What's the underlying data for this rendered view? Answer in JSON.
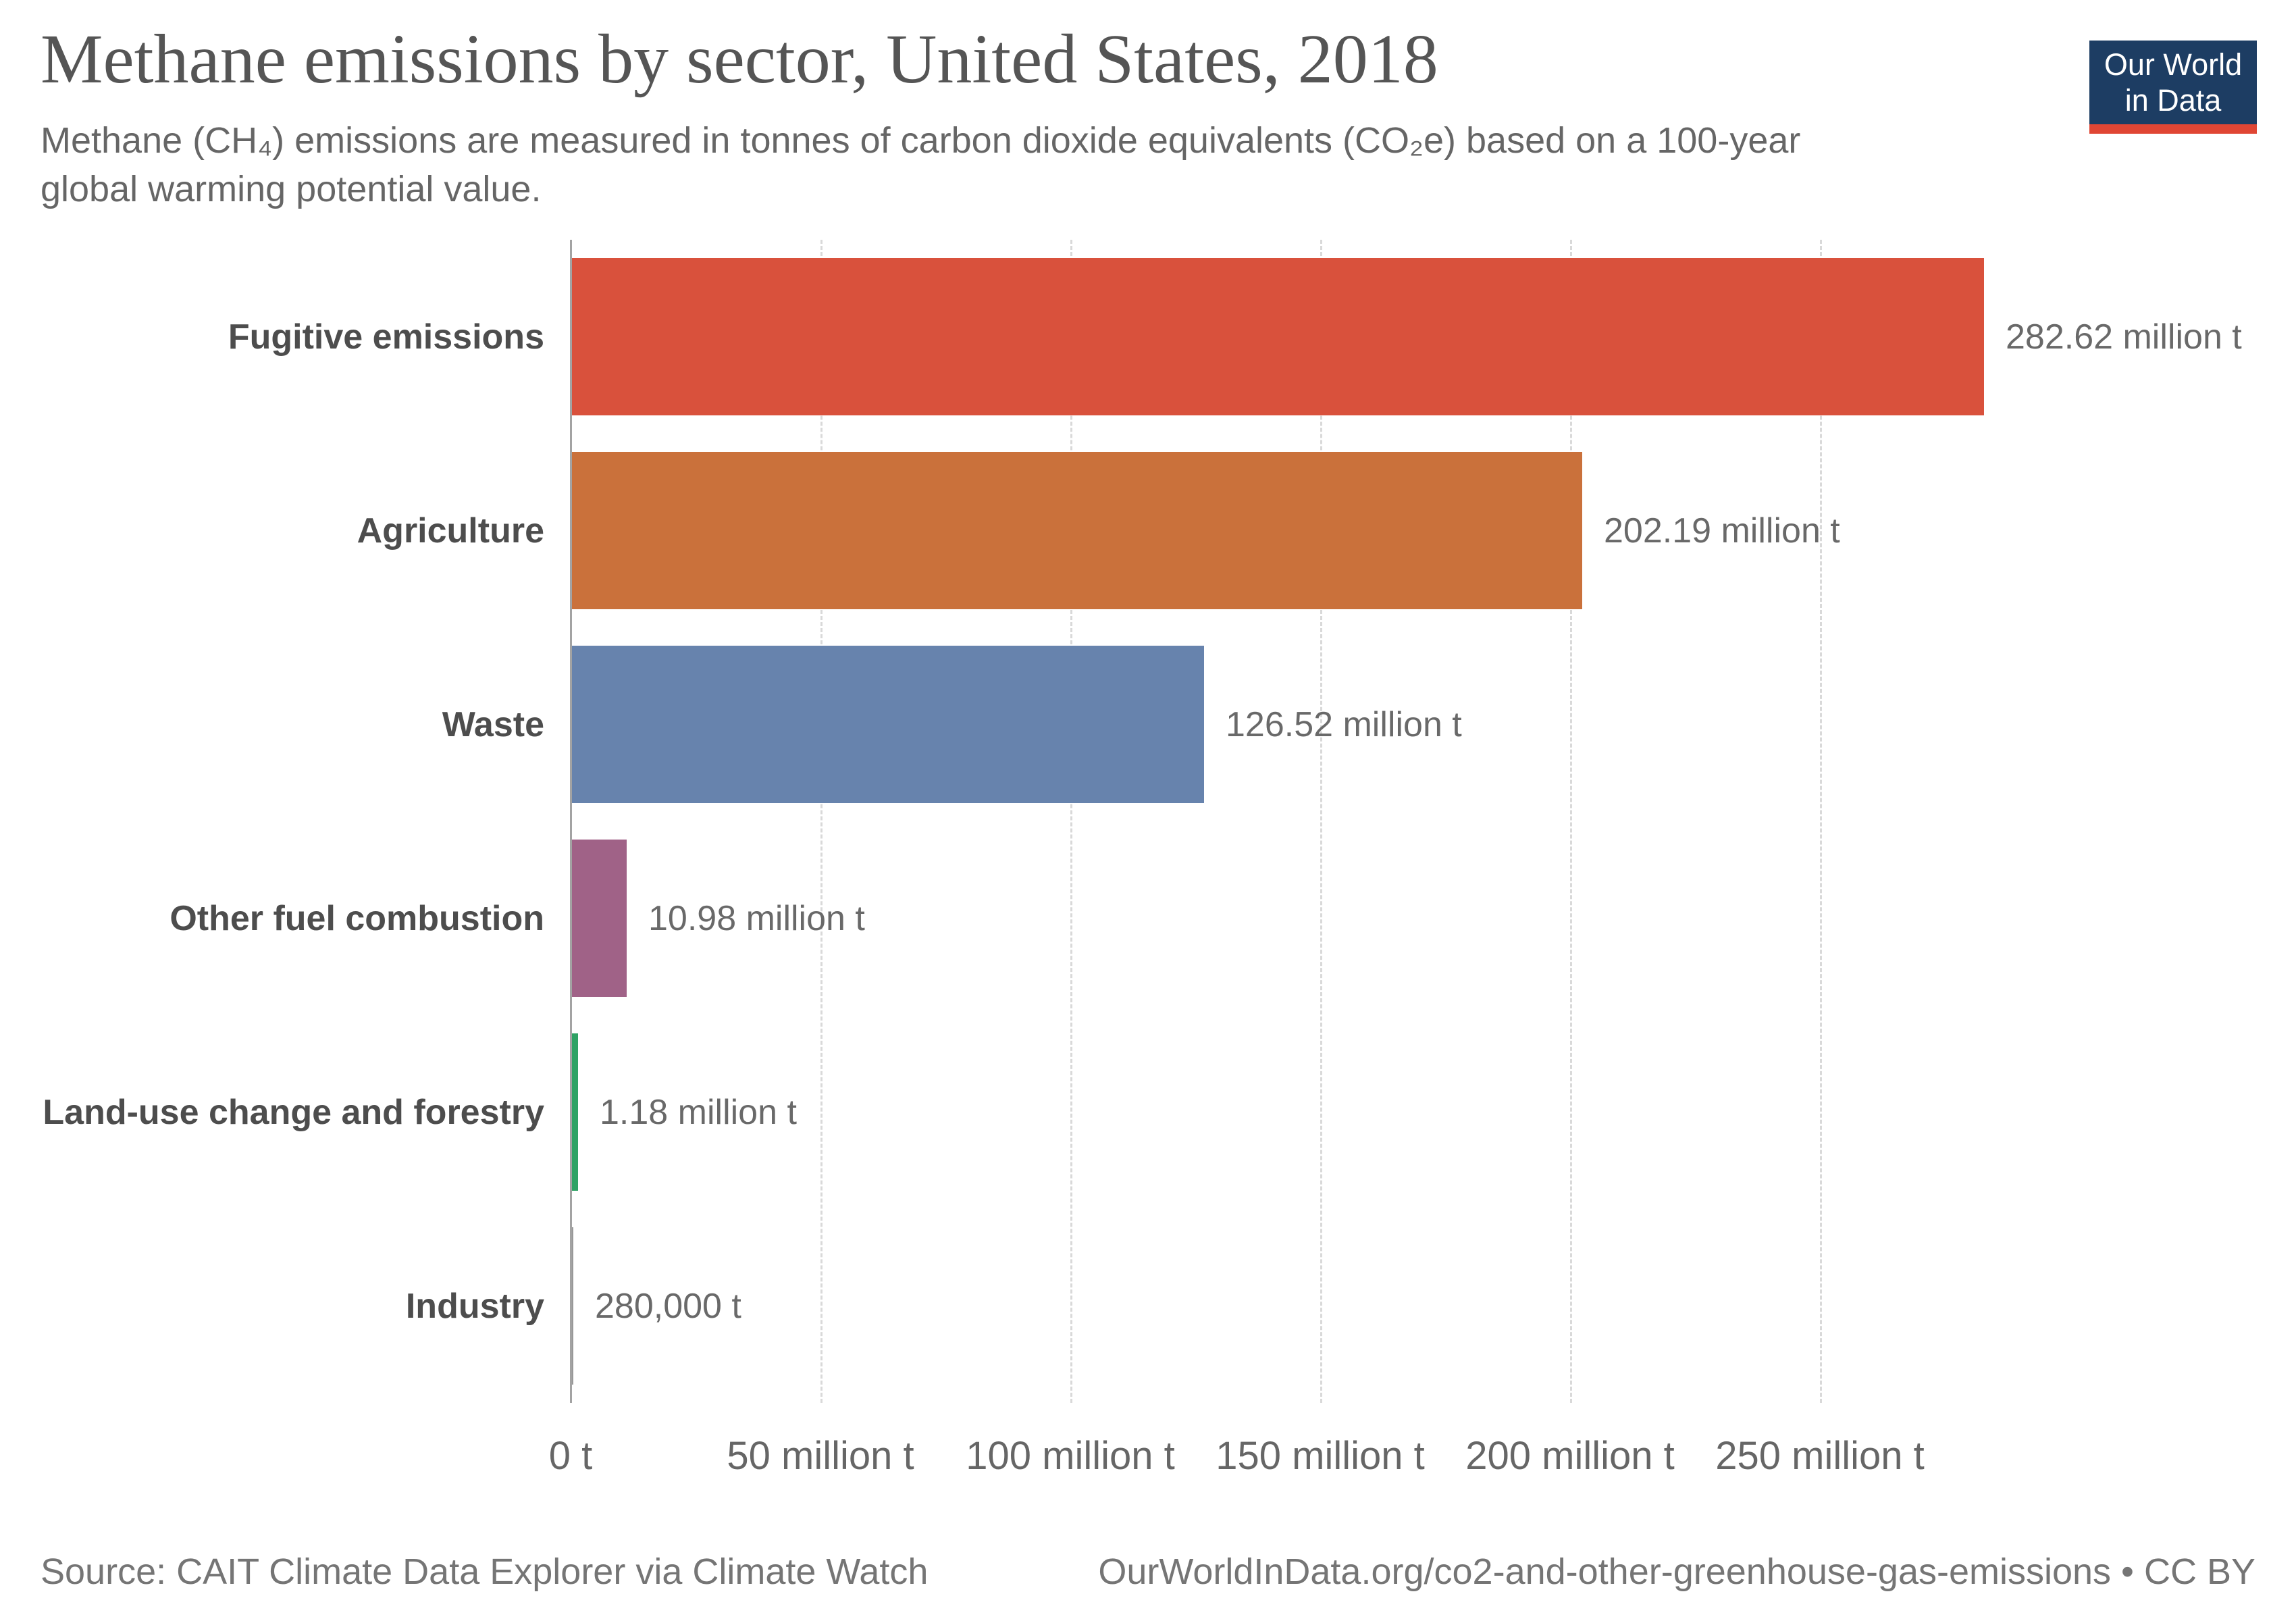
{
  "header": {
    "title": "Methane emissions by sector, United States, 2018",
    "subtitle_lines": [
      "Methane (CH₄) emissions are measured in tonnes of carbon dioxide equivalents (CO₂e) based on a 100-year",
      "global warming potential value."
    ]
  },
  "logo": {
    "line1": "Our World",
    "line2": "in Data",
    "bg_color": "#1d3d63",
    "accent_color": "#e04634"
  },
  "chart_data": {
    "type": "bar",
    "orientation": "horizontal",
    "title": "Methane emissions by sector, United States, 2018",
    "xlabel": "",
    "ylabel": "",
    "unit": "tonnes CO₂e",
    "xlim_million_t": [
      0,
      282.62
    ],
    "grid": "vertical-dashed",
    "legend": "none",
    "x_ticks": [
      "0 t",
      "50 million t",
      "100 million t",
      "150 million t",
      "200 million t",
      "250 million t"
    ],
    "x_tick_values_million_t": [
      0,
      50,
      100,
      150,
      200,
      250
    ],
    "categories": [
      "Fugitive emissions",
      "Agriculture",
      "Waste",
      "Other fuel combustion",
      "Land-use change and forestry",
      "Industry"
    ],
    "values_million_t": [
      282.62,
      202.19,
      126.52,
      10.98,
      1.18,
      0.28
    ],
    "rows": [
      {
        "label": "Fugitive emissions",
        "value_million_t": 282.62,
        "value_label": "282.62 million t",
        "color": "#d9513c"
      },
      {
        "label": "Agriculture",
        "value_million_t": 202.19,
        "value_label": "202.19 million t",
        "color": "#ca713b"
      },
      {
        "label": "Waste",
        "value_million_t": 126.52,
        "value_label": "126.52 million t",
        "color": "#6783ad"
      },
      {
        "label": "Other fuel combustion",
        "value_million_t": 10.98,
        "value_label": "10.98 million t",
        "color": "#a06287"
      },
      {
        "label": "Land-use change and forestry",
        "value_million_t": 1.18,
        "value_label": "1.18 million t",
        "color": "#2ea264"
      },
      {
        "label": "Industry",
        "value_million_t": 0.28,
        "value_label": "280,000 t",
        "color": "#999999"
      }
    ]
  },
  "footer": {
    "source": "Source: CAIT Climate Data Explorer via Climate Watch",
    "link": "OurWorldInData.org/co2-and-other-greenhouse-gas-emissions • CC BY"
  }
}
